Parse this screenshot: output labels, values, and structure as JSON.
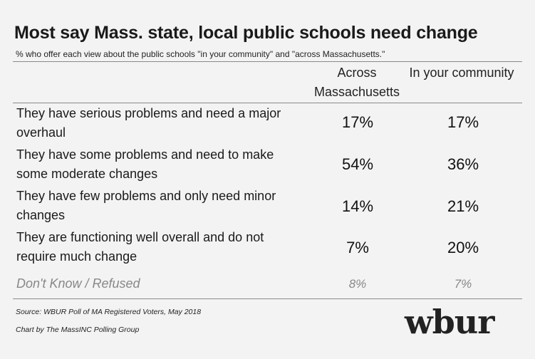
{
  "chart_data": {
    "type": "table",
    "title": "Most say Mass. state, local public schools need change",
    "subtitle": "% who offer each view about the public schools \"in your community\" and \"across Massachusetts.\"",
    "columns": [
      "Across Massachusetts",
      "In your community"
    ],
    "rows": [
      {
        "label": "They have serious problems and need a major overhaul",
        "values": [
          "17%",
          "17%"
        ]
      },
      {
        "label": "They have some problems and need to make some moderate changes",
        "values": [
          "54%",
          "36%"
        ]
      },
      {
        "label": "They have few problems and only need minor changes",
        "values": [
          "14%",
          "21%"
        ]
      },
      {
        "label": "They are functioning well overall and do not require much change",
        "values": [
          "7%",
          "20%"
        ]
      },
      {
        "label": "Don't Know / Refused",
        "values": [
          "8%",
          "7%"
        ]
      }
    ]
  },
  "footer": {
    "source": "Source: WBUR Poll of MA Registered Voters, May 2018",
    "credit": "Chart by The MassINC Polling Group",
    "logo_text": "wbur"
  }
}
